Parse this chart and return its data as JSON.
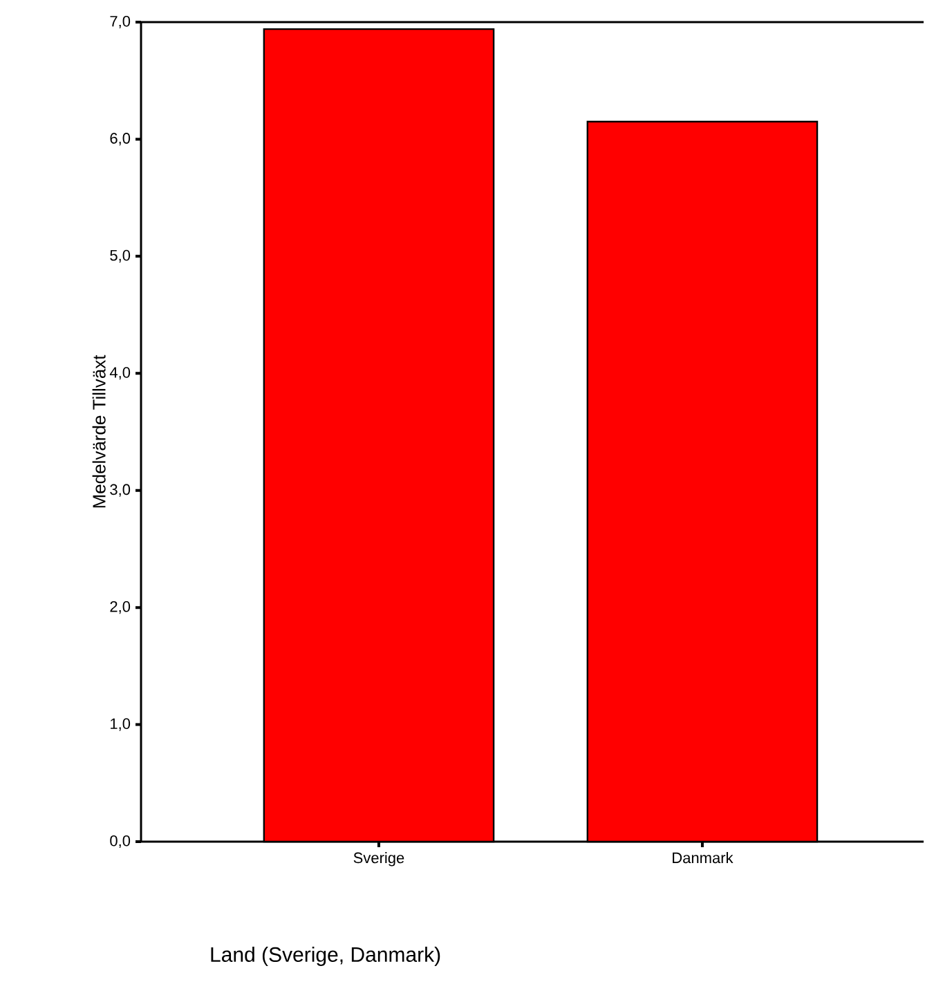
{
  "chart_data": {
    "type": "bar",
    "xlabel": "Land (Sverige, Danmark)",
    "ylabel": "Medelvärde Tillväxt",
    "categories": [
      "Sverige",
      "Danmark"
    ],
    "values": [
      6.94,
      6.15
    ],
    "color": "#ff0000",
    "ylim": [
      0,
      7
    ],
    "yticks": [
      {
        "value": 0,
        "label": "0,0"
      },
      {
        "value": 1,
        "label": "1,0"
      },
      {
        "value": 2,
        "label": "2,0"
      },
      {
        "value": 3,
        "label": "3,0"
      },
      {
        "value": 4,
        "label": "4,0"
      },
      {
        "value": 5,
        "label": "5,0"
      },
      {
        "value": 6,
        "label": "6,0"
      },
      {
        "value": 7,
        "label": "7,0"
      }
    ],
    "grid": false
  }
}
